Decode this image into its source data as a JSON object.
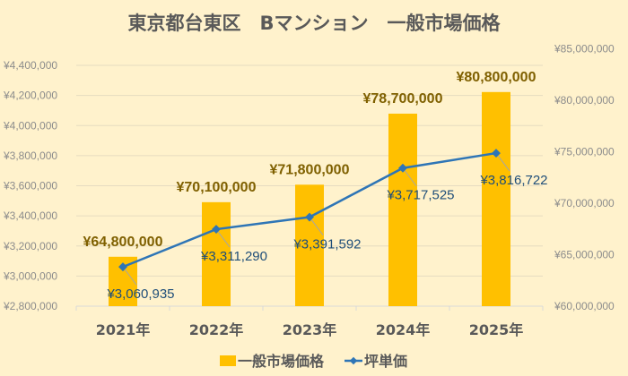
{
  "chart_data": {
    "type": "bar+line",
    "title": "東京都台東区　Bマンション　一般市場価格",
    "categories": [
      "2021年",
      "2022年",
      "2023年",
      "2024年",
      "2025年"
    ],
    "series": [
      {
        "name": "一般市場価格",
        "type": "bar",
        "axis": "right",
        "color": "#ffc000",
        "values": [
          64800000,
          70100000,
          71800000,
          78700000,
          80800000
        ],
        "labels": [
          "¥64,800,000",
          "¥70,100,000",
          "¥71,800,000",
          "¥78,700,000",
          "¥80,800,000"
        ]
      },
      {
        "name": "坪単価",
        "type": "line",
        "axis": "left",
        "color": "#2e75b6",
        "values": [
          3060935,
          3311290,
          3391592,
          3717525,
          3816722
        ],
        "labels": [
          "¥3,060,935",
          "¥3,311,290",
          "¥3,391,592",
          "¥3,717,525",
          "¥3,816,722"
        ]
      }
    ],
    "left_axis": {
      "range": [
        2800000,
        4400000
      ],
      "ticks": [
        "¥2,800,000",
        "¥3,000,000",
        "¥3,200,000",
        "¥3,400,000",
        "¥3,600,000",
        "¥3,800,000",
        "¥4,000,000",
        "¥4,200,000",
        "¥4,400,000"
      ]
    },
    "right_axis": {
      "range": [
        60000000,
        85000000
      ],
      "ticks": [
        "¥60,000,000",
        "¥65,000,000",
        "¥70,000,000",
        "¥75,000,000",
        "¥80,000,000",
        "¥85,000,000"
      ]
    },
    "grid": true,
    "legend": "bottom"
  }
}
